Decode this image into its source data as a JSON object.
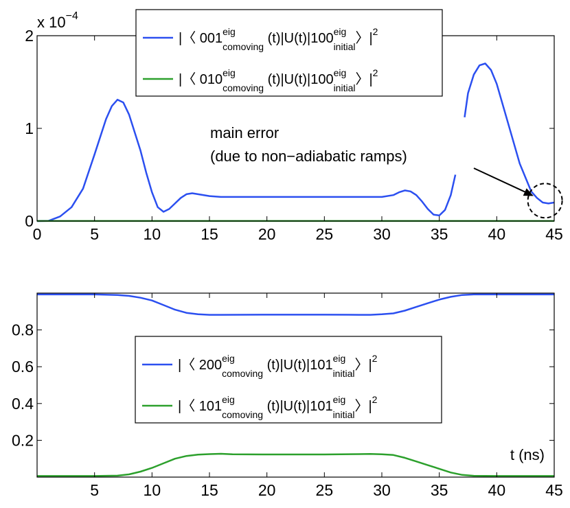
{
  "chart_data": [
    {
      "type": "line",
      "y_exponent": {
        "base": "x 10",
        "power": "−4"
      },
      "xlim": [
        0,
        45
      ],
      "ylim": [
        0,
        2
      ],
      "x_ticks": [
        0,
        5,
        10,
        15,
        20,
        25,
        30,
        35,
        40,
        45
      ],
      "y_ticks": [
        0,
        1,
        2
      ],
      "grid": false,
      "legend_position": "top",
      "colors": {
        "blue": "#2b4ff0",
        "green": "#2ca02c"
      },
      "series": [
        {
          "name": "|⟨ 001(comoving, eig)(t)|U(t)|100(initial, eig)⟩|²",
          "legend": {
            "pre": "|〈 001",
            "sup1": "eig",
            "sub1": "comoving",
            "mid": " (t)|U(t)|100",
            "sup2": "eig",
            "sub2": "initial",
            "post": "〉|",
            "pow": "2"
          },
          "color": "#2b4ff0",
          "segments": [
            {
              "x": [
                0,
                1,
                2,
                3,
                4,
                5,
                6,
                6.5,
                7,
                7.5,
                8,
                9,
                9.5,
                10,
                10.5,
                11,
                11.5,
                12,
                12.5,
                13,
                13.5,
                14,
                15,
                16,
                17,
                20,
                25,
                29,
                30,
                31,
                31.5,
                32,
                32.5,
                33,
                33.5,
                34,
                34.5,
                35,
                35.5,
                36,
                36.4
              ],
              "y": [
                0,
                0.002,
                0.05,
                0.15,
                0.35,
                0.72,
                1.1,
                1.24,
                1.31,
                1.28,
                1.15,
                0.76,
                0.52,
                0.31,
                0.15,
                0.1,
                0.13,
                0.19,
                0.25,
                0.29,
                0.3,
                0.29,
                0.27,
                0.26,
                0.26,
                0.26,
                0.26,
                0.26,
                0.26,
                0.28,
                0.31,
                0.33,
                0.32,
                0.28,
                0.21,
                0.13,
                0.07,
                0.06,
                0.12,
                0.28,
                0.5
              ]
            },
            {
              "x": [
                37.2,
                37.5,
                38,
                38.5,
                39,
                39.5,
                40,
                41,
                42,
                43,
                43.5,
                44,
                44.5,
                45
              ],
              "y": [
                1.12,
                1.38,
                1.58,
                1.68,
                1.7,
                1.63,
                1.48,
                1.05,
                0.62,
                0.32,
                0.25,
                0.2,
                0.19,
                0.2
              ]
            }
          ]
        },
        {
          "name": "|⟨ 010(comoving, eig)(t)|U(t)|100(initial, eig)⟩|²",
          "legend": {
            "pre": "|〈 010",
            "sup1": "eig",
            "sub1": "comoving",
            "mid": " (t)|U(t)|100",
            "sup2": "eig",
            "sub2": "initial",
            "post": "〉|",
            "pow": "2"
          },
          "color": "#2ca02c",
          "segments": [
            {
              "x": [
                0,
                45
              ],
              "y": [
                0.001,
                0.001
              ]
            }
          ]
        }
      ],
      "annotation": {
        "line1": "main error",
        "line2": "(due to non−adiabatic ramps)",
        "arrow_to": [
          43.2,
          0.27
        ],
        "circle_center": [
          44.2,
          0.22
        ]
      }
    },
    {
      "type": "line",
      "xlim": [
        0,
        45
      ],
      "ylim": [
        0,
        1
      ],
      "x_ticks": [
        5,
        10,
        15,
        20,
        25,
        30,
        35,
        40,
        45
      ],
      "y_ticks": [
        0.2,
        0.4,
        0.6,
        0.8
      ],
      "y_tick_labels": [
        "0.2",
        "0.4",
        "0.6",
        "0.8"
      ],
      "grid": false,
      "legend_position": "center",
      "xlabel": "t (ns)",
      "colors": {
        "blue": "#2b4ff0",
        "green": "#2ca02c"
      },
      "series": [
        {
          "name": "|⟨ 200(comoving, eig)(t)|U(t)|101(initial, eig)⟩|²",
          "legend": {
            "pre": "|〈 200",
            "sup1": "eig",
            "sub1": "comoving",
            "mid": " (t)|U(t)|101",
            "sup2": "eig",
            "sub2": "initial",
            "post": "〉|",
            "pow": "2"
          },
          "color": "#2b4ff0",
          "segments": [
            {
              "x": [
                0,
                5,
                7,
                8,
                9,
                10,
                11,
                12,
                13,
                14,
                15,
                16,
                20,
                25,
                28,
                29,
                30,
                31,
                32,
                33,
                34,
                35,
                36,
                37,
                38,
                40,
                45
              ],
              "y": [
                0.993,
                0.993,
                0.99,
                0.985,
                0.975,
                0.96,
                0.935,
                0.91,
                0.893,
                0.885,
                0.882,
                0.882,
                0.883,
                0.883,
                0.882,
                0.882,
                0.885,
                0.89,
                0.905,
                0.925,
                0.945,
                0.965,
                0.98,
                0.99,
                0.993,
                0.993,
                0.993
              ]
            }
          ]
        },
        {
          "name": "|⟨ 101(comoving, eig)(t)|U(t)|101(initial, eig)⟩|²",
          "legend": {
            "pre": "|〈 101",
            "sup1": "eig",
            "sub1": "comoving",
            "mid": " (t)|U(t)|101",
            "sup2": "eig",
            "sub2": "initial",
            "post": "〉|",
            "pow": "2"
          },
          "color": "#2ca02c",
          "segments": [
            {
              "x": [
                0,
                5,
                7,
                8,
                9,
                10,
                11,
                12,
                13,
                14,
                15,
                16,
                17,
                20,
                25,
                28,
                29,
                30,
                31,
                32,
                33,
                34,
                35,
                36,
                37,
                38,
                40,
                45
              ],
              "y": [
                0.006,
                0.006,
                0.008,
                0.015,
                0.03,
                0.05,
                0.075,
                0.1,
                0.115,
                0.122,
                0.125,
                0.127,
                0.124,
                0.123,
                0.123,
                0.125,
                0.126,
                0.124,
                0.12,
                0.105,
                0.085,
                0.065,
                0.045,
                0.025,
                0.012,
                0.007,
                0.006,
                0.006
              ]
            }
          ]
        }
      ]
    }
  ]
}
